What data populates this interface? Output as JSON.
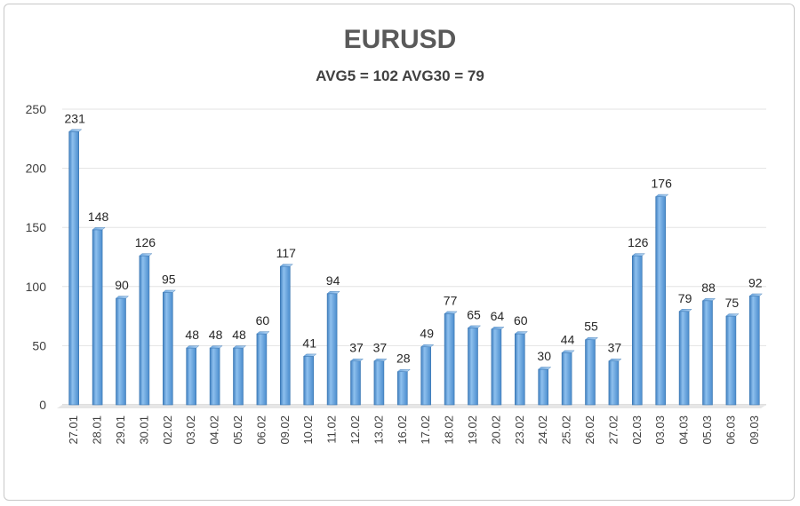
{
  "chart_data": {
    "type": "bar",
    "title": "EURUSD",
    "subtitle": "AVG5 = 102 AVG30 = 79",
    "xlabel": "",
    "ylabel": "",
    "ylim": [
      0,
      250
    ],
    "yticks": [
      0,
      50,
      100,
      150,
      200,
      250
    ],
    "grid": true,
    "legend": "none",
    "bar_color": "#5b9bd5",
    "categories": [
      "27.01",
      "28.01",
      "29.01",
      "30.01",
      "02.02",
      "03.02",
      "04.02",
      "05.02",
      "06.02",
      "09.02",
      "10.02",
      "11.02",
      "12.02",
      "13.02",
      "16.02",
      "17.02",
      "18.02",
      "19.02",
      "20.02",
      "23.02",
      "24.02",
      "25.02",
      "26.02",
      "27.02",
      "02.03",
      "03.03",
      "04.03",
      "05.03",
      "06.03",
      "09.03"
    ],
    "values": [
      231,
      148,
      90,
      126,
      95,
      48,
      48,
      48,
      60,
      117,
      41,
      94,
      37,
      37,
      28,
      49,
      77,
      65,
      64,
      60,
      30,
      44,
      55,
      37,
      126,
      176,
      79,
      88,
      75,
      92
    ]
  }
}
